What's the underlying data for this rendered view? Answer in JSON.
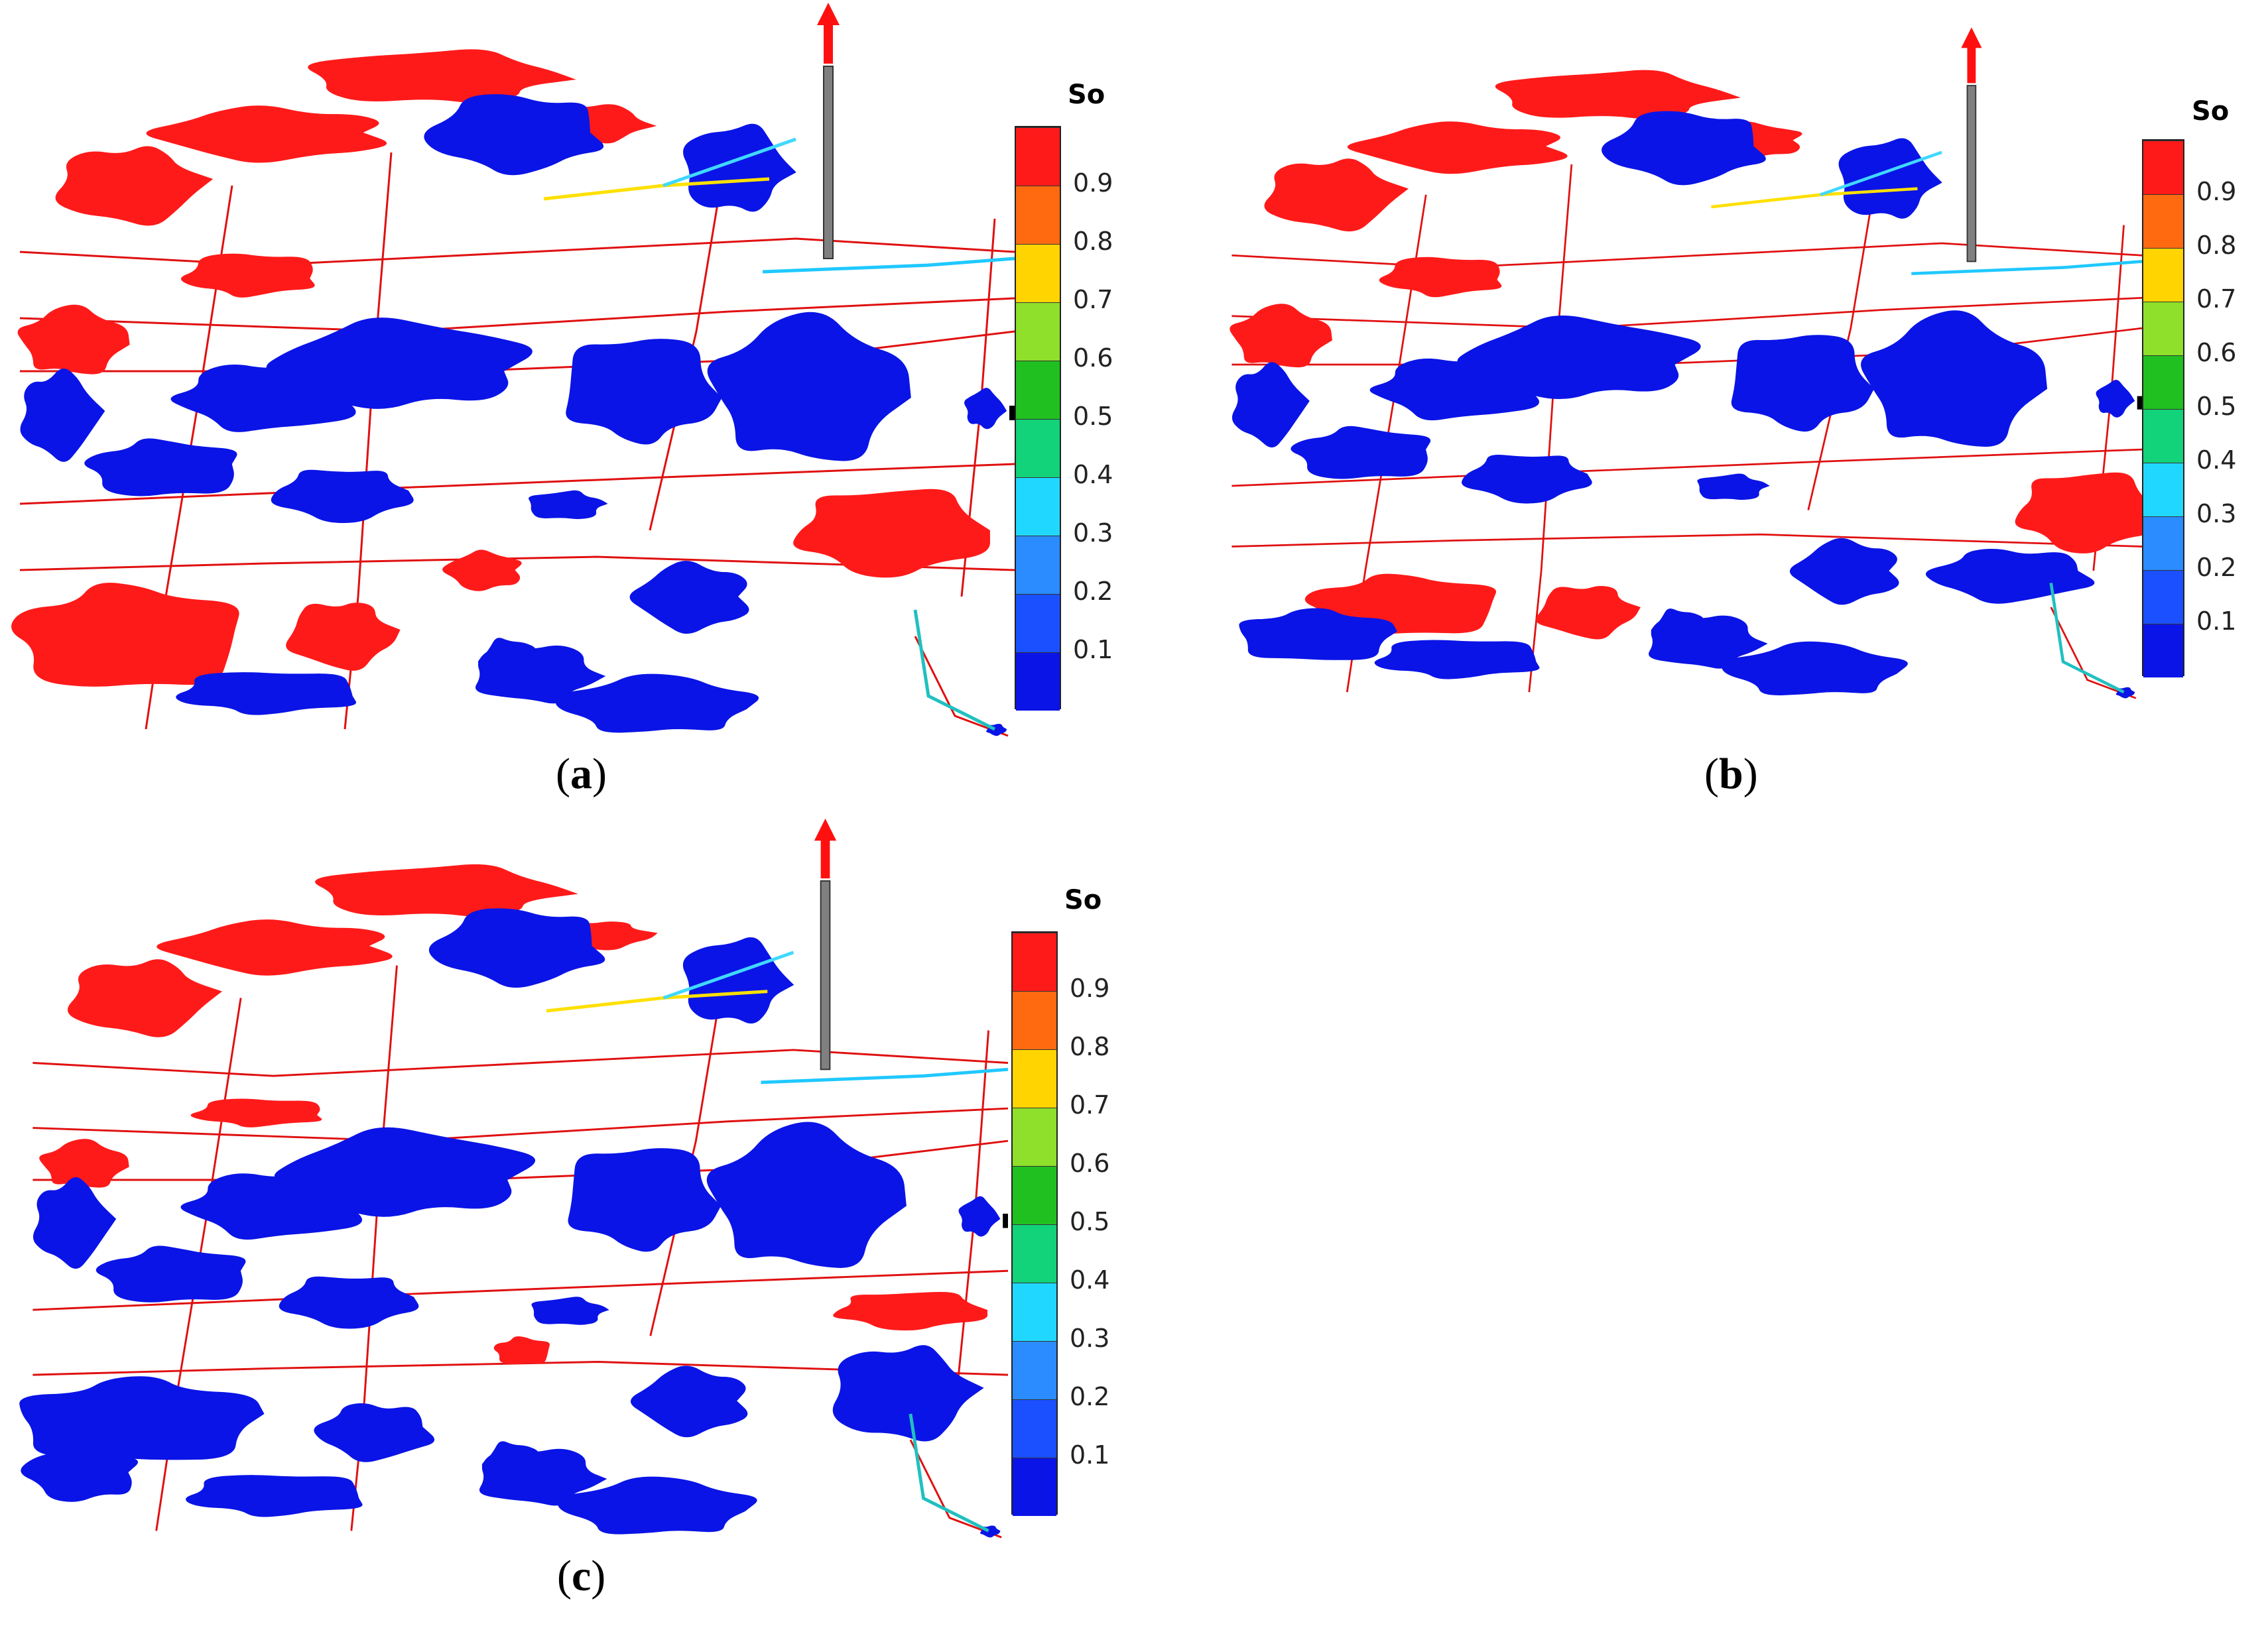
{
  "colors": {
    "oil": "#ff1a1a",
    "water": "#0a14e6",
    "fracture": "#e01010",
    "well": "#808080",
    "arrow": "#ff1010"
  },
  "colorbar": {
    "title": "So",
    "ticks": [
      "0.9",
      "0.8",
      "0.7",
      "0.6",
      "0.5",
      "0.4",
      "0.3",
      "0.2",
      "0.1"
    ],
    "segments": [
      "#ff1a1a",
      "#ff6a10",
      "#ffd400",
      "#8ee02a",
      "#20c020",
      "#12d27a",
      "#20d8ff",
      "#2a8cff",
      "#1a50ff",
      "#0a14e6"
    ]
  },
  "panels": [
    {
      "id": "a",
      "caption_open": "(",
      "caption_letter": "a",
      "caption_close": ")"
    },
    {
      "id": "b",
      "caption_open": "(",
      "caption_letter": "b",
      "caption_close": ")"
    },
    {
      "id": "c",
      "caption_open": "(",
      "caption_letter": "c",
      "caption_close": ")"
    }
  ]
}
